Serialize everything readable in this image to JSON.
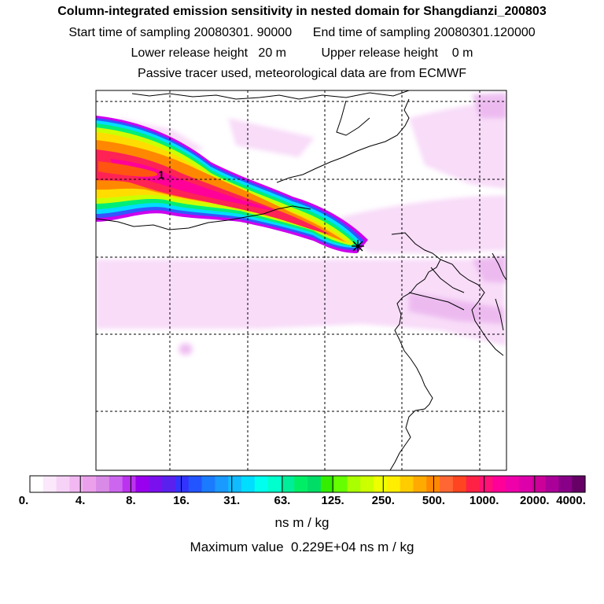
{
  "header": {
    "title": "Column-integrated emission sensitivity in nested domain for Shangdianzi_200803",
    "start_label": "Start time of sampling",
    "start_value": "20080301. 90000",
    "end_label": "End time of sampling",
    "end_value": "20080301.120000",
    "lower_label": "Lower release height",
    "lower_value": "20 m",
    "upper_label": "Upper release height",
    "upper_value": "0 m",
    "tracer_note": "Passive tracer used, meteorological data are from ECMWF"
  },
  "map": {
    "receptor_marker": "star-cross-icon",
    "plume_label": "1"
  },
  "colorbar": {
    "tick_labels": [
      "0.",
      "4.",
      "8.",
      "16.",
      "31.",
      "63.",
      "125.",
      "250.",
      "500.",
      "1000.",
      "2000.",
      "4000."
    ],
    "colors": [
      "#ffffff",
      "#fbe8fb",
      "#f7d2f7",
      "#f1b8f1",
      "#eaa0ea",
      "#d98ae6",
      "#cc66ee",
      "#bb33ee",
      "#9900ee",
      "#7a10ee",
      "#5a20ee",
      "#3333ff",
      "#2255ff",
      "#1a7bff",
      "#1a99ff",
      "#11bbff",
      "#00ddff",
      "#00ffee",
      "#00ffcc",
      "#00ee99",
      "#00ee66",
      "#00dd66",
      "#33ee00",
      "#66ff00",
      "#aaff00",
      "#ccff00",
      "#eeff00",
      "#ffee00",
      "#ffcc00",
      "#ffaa00",
      "#ff8800",
      "#ff6633",
      "#ff4422",
      "#ff2244",
      "#ff1177",
      "#ff0099",
      "#ee00aa",
      "#dd00aa",
      "#cc0099",
      "#aa0099",
      "#880088",
      "#660066"
    ],
    "units": "ns m / kg",
    "max_label": "Maximum value",
    "max_value": "0.229E+04 ns m / kg"
  }
}
